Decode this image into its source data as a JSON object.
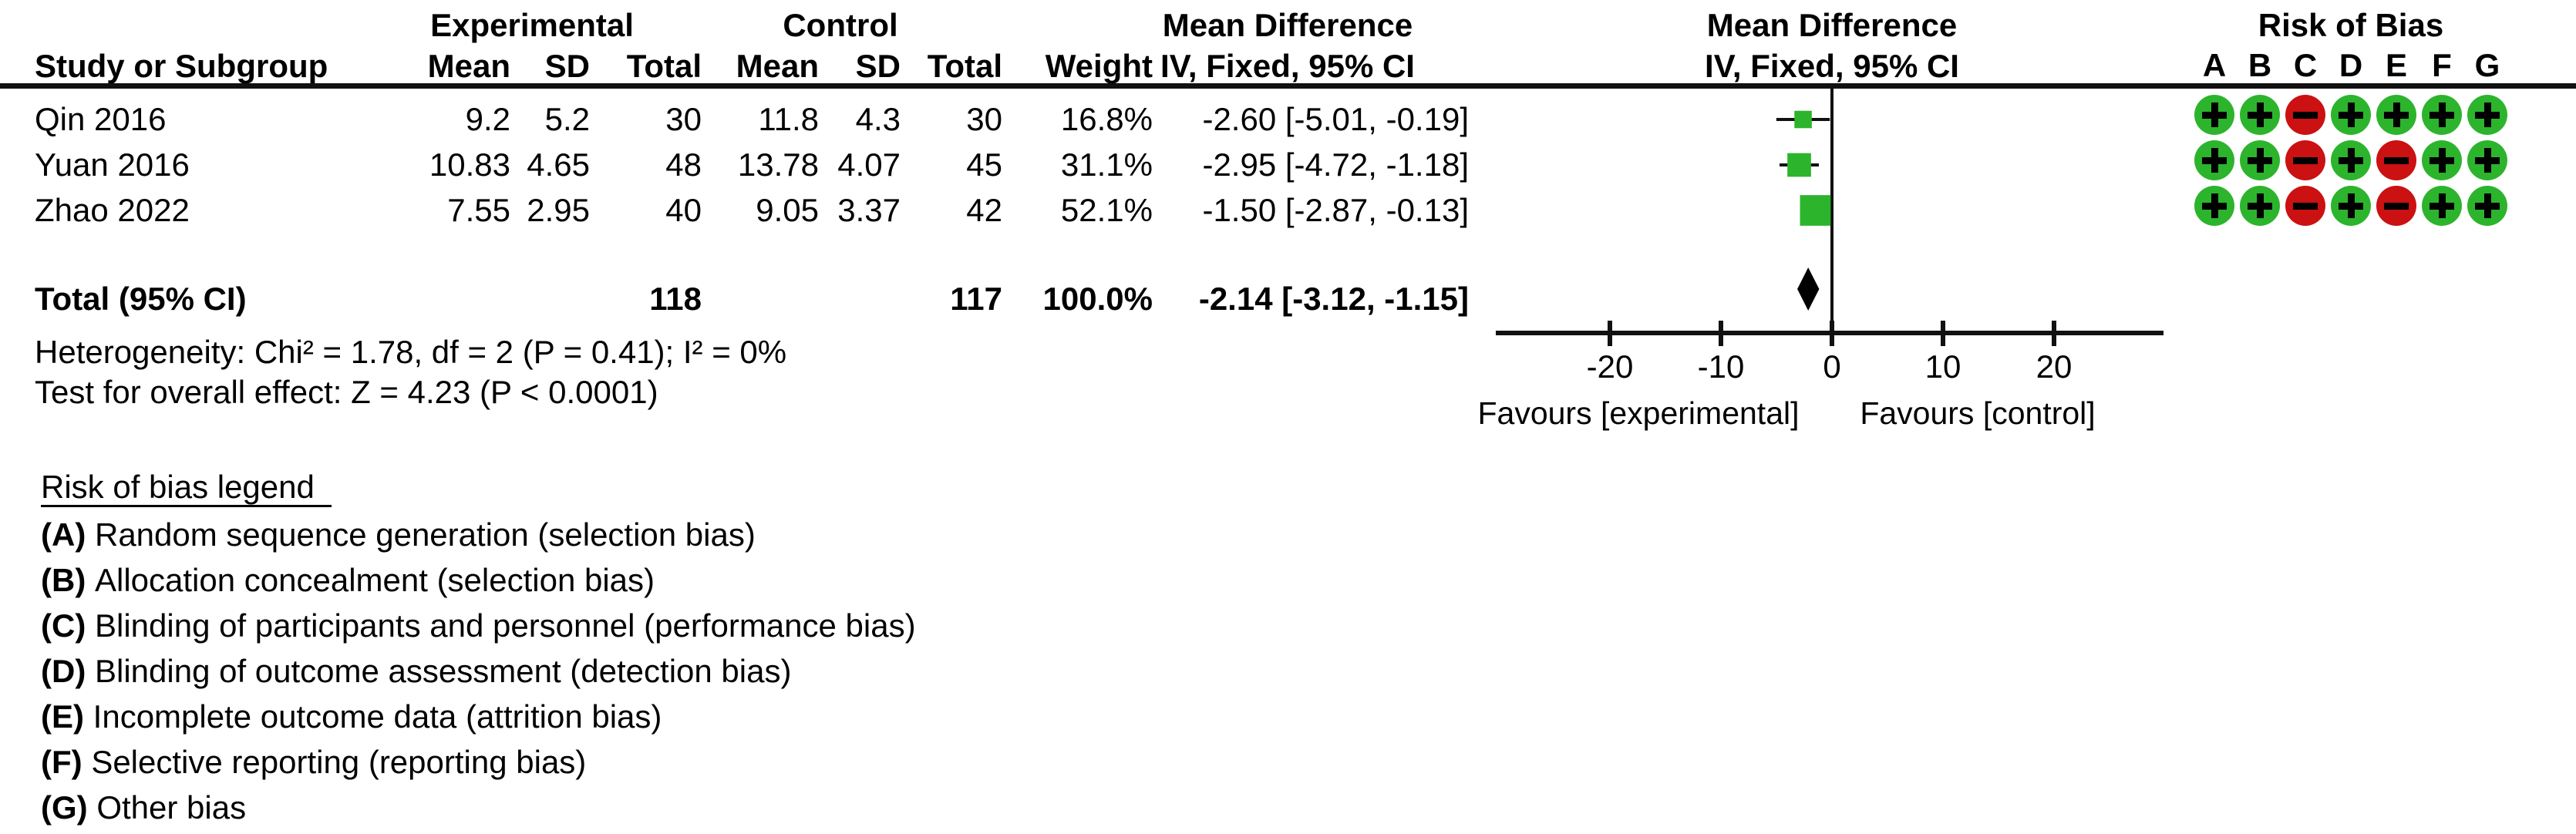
{
  "header": {
    "group_experimental": "Experimental",
    "group_control": "Control",
    "md_column_title": "Mean Difference",
    "md_plot_title": "Mean Difference",
    "rob_title": "Risk of Bias",
    "study_col": "Study or Subgroup",
    "mean_col": "Mean",
    "sd_col": "SD",
    "total_col": "Total",
    "mean2_col": "Mean",
    "sd2_col": "SD",
    "total2_col": "Total",
    "weight_col": "Weight",
    "ci_col": "IV, Fixed, 95% CI",
    "ci_plot_col": "IV, Fixed, 95% CI",
    "rob_letters": [
      "A",
      "B",
      "C",
      "D",
      "E",
      "F",
      "G"
    ]
  },
  "studies": [
    {
      "name": "Qin 2016",
      "exp_mean": "9.2",
      "exp_sd": "5.2",
      "exp_total": "30",
      "ctrl_mean": "11.8",
      "ctrl_sd": "4.3",
      "ctrl_total": "30",
      "weight": "16.8%",
      "ci_text": "-2.60 [-5.01, -0.19]",
      "rob": [
        "+",
        "+",
        "-",
        "+",
        "+",
        "+",
        "+"
      ]
    },
    {
      "name": "Yuan 2016",
      "exp_mean": "10.83",
      "exp_sd": "4.65",
      "exp_total": "48",
      "ctrl_mean": "13.78",
      "ctrl_sd": "4.07",
      "ctrl_total": "45",
      "weight": "31.1%",
      "ci_text": "-2.95 [-4.72, -1.18]",
      "rob": [
        "+",
        "+",
        "-",
        "+",
        "-",
        "+",
        "+"
      ]
    },
    {
      "name": "Zhao 2022",
      "exp_mean": "7.55",
      "exp_sd": "2.95",
      "exp_total": "40",
      "ctrl_mean": "9.05",
      "ctrl_sd": "3.37",
      "ctrl_total": "42",
      "weight": "52.1%",
      "ci_text": "-1.50 [-2.87, -0.13]",
      "rob": [
        "+",
        "+",
        "-",
        "+",
        "-",
        "+",
        "+"
      ]
    }
  ],
  "total_row": {
    "label": "Total (95% CI)",
    "exp_total": "118",
    "ctrl_total": "117",
    "weight": "100.0%",
    "ci_text": "-2.14 [-3.12, -1.15]"
  },
  "stats": {
    "heterogeneity": "Heterogeneity: Chi² = 1.78, df = 2 (P = 0.41); I² = 0%",
    "overall_effect": "Test for overall effect: Z = 4.23 (P < 0.0001)"
  },
  "axis": {
    "tick_labels": [
      "-20",
      "-10",
      "0",
      "10",
      "20"
    ],
    "favours_left": "Favours [experimental]",
    "favours_right": "Favours [control]"
  },
  "legend": {
    "title": "Risk of bias legend",
    "items": [
      {
        "key": "(A)",
        "text": "Random sequence generation (selection bias)"
      },
      {
        "key": "(B)",
        "text": "Allocation concealment (selection bias)"
      },
      {
        "key": "(C)",
        "text": "Blinding of participants and personnel (performance bias)"
      },
      {
        "key": "(D)",
        "text": "Blinding of outcome assessment (detection bias)"
      },
      {
        "key": "(E)",
        "text": "Incomplete outcome data (attrition bias)"
      },
      {
        "key": "(F)",
        "text": "Selective reporting (reporting bias)"
      },
      {
        "key": "(G)",
        "text": "Other bias"
      }
    ]
  },
  "colors": {
    "low_risk_green": "#2DB42D",
    "high_risk_red": "#CB1111",
    "square_green": "#2DB42D",
    "line_black": "#111111"
  },
  "chart_data": {
    "type": "scatter",
    "subtype": "forest-plot",
    "title": "Mean Difference, IV, Fixed, 95% CI",
    "points": [
      {
        "study": "Qin 2016",
        "md": -2.6,
        "ci": [
          -5.01,
          -0.19
        ],
        "weight_pct": 16.8
      },
      {
        "study": "Yuan 2016",
        "md": -2.95,
        "ci": [
          -4.72,
          -1.18
        ],
        "weight_pct": 31.1
      },
      {
        "study": "Zhao 2022",
        "md": -1.5,
        "ci": [
          -2.87,
          -0.13
        ],
        "weight_pct": 52.1
      }
    ],
    "pooled": {
      "label": "Total (95% CI)",
      "md": -2.14,
      "ci": [
        -3.12,
        -1.15
      ],
      "weight_pct": 100.0
    },
    "totals": {
      "experimental_n": 118,
      "control_n": 117
    },
    "heterogeneity": {
      "chi2": 1.78,
      "df": 2,
      "p": 0.41,
      "i2_pct": 0
    },
    "overall_effect": {
      "z": 4.23,
      "p": "< 0.0001"
    },
    "xticks": [
      -20,
      -10,
      0,
      10,
      20
    ],
    "xlim": [
      -30.3,
      29.9
    ],
    "xlabel_left": "Favours [experimental]",
    "xlabel_right": "Favours [control]",
    "grid": false,
    "risk_of_bias_matrix": [
      [
        "+",
        "+",
        "-",
        "+",
        "+",
        "+",
        "+"
      ],
      [
        "+",
        "+",
        "-",
        "+",
        "-",
        "+",
        "+"
      ],
      [
        "+",
        "+",
        "-",
        "+",
        "-",
        "+",
        "+"
      ]
    ]
  }
}
